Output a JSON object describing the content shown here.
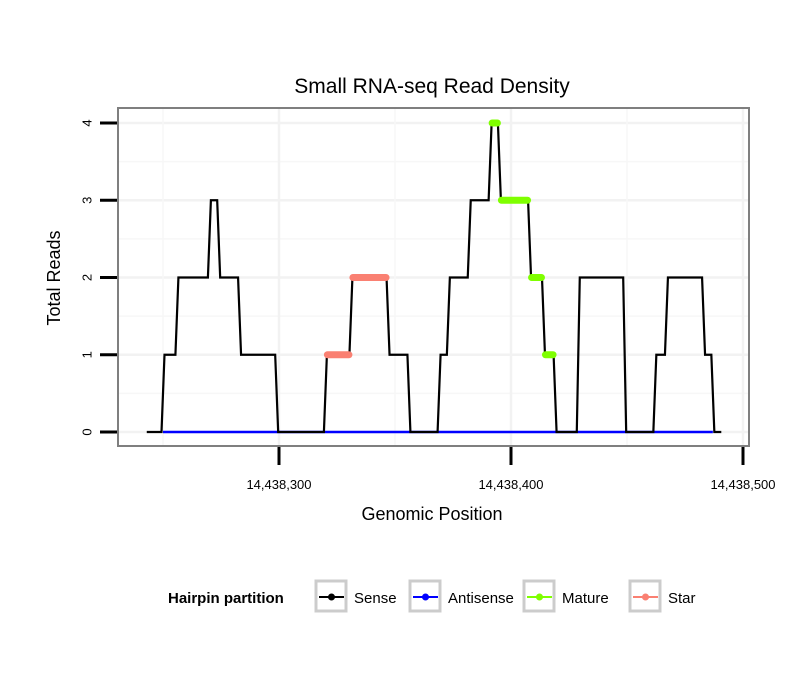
{
  "chart_data": {
    "type": "line",
    "title": "Small RNA-seq Read Density",
    "xlabel": "Genomic Position",
    "ylabel": "Total Reads",
    "xlim": [
      14438243,
      14438490
    ],
    "ylim": [
      0,
      4
    ],
    "x_ticks": [
      14438300,
      14438400,
      14438500
    ],
    "x_tick_labels": [
      "14,438,300",
      "14,438,400",
      "14,438,500"
    ],
    "y_ticks": [
      0,
      1,
      2,
      3,
      4
    ],
    "y_tick_labels": [
      "0",
      "1",
      "2",
      "3",
      "4"
    ],
    "grid": true,
    "legend": {
      "title": "Hairpin partition",
      "position": "bottom",
      "entries": [
        {
          "name": "Sense",
          "color": "#000000"
        },
        {
          "name": "Antisense",
          "color": "#0000ff"
        },
        {
          "name": "Mature",
          "color": "#7fff00"
        },
        {
          "name": "Star",
          "color": "#fa8072"
        }
      ]
    },
    "series": [
      {
        "name": "Sense",
        "color": "#000000",
        "steps": [
          [
            14438243,
            0
          ],
          [
            14438250,
            1
          ],
          [
            14438256,
            2
          ],
          [
            14438270,
            3
          ],
          [
            14438274,
            2
          ],
          [
            14438283,
            1
          ],
          [
            14438299,
            0
          ],
          [
            14438320,
            1
          ],
          [
            14438331,
            2
          ],
          [
            14438347,
            1
          ],
          [
            14438356,
            0
          ],
          [
            14438369,
            1
          ],
          [
            14438373,
            2
          ],
          [
            14438382,
            3
          ],
          [
            14438391,
            4
          ],
          [
            14438395,
            3
          ],
          [
            14438408,
            2
          ],
          [
            14438414,
            1
          ],
          [
            14438419,
            0
          ],
          [
            14438429,
            2
          ],
          [
            14438449,
            0
          ],
          [
            14438462,
            1
          ],
          [
            14438467,
            2
          ],
          [
            14438483,
            1
          ],
          [
            14438487,
            0
          ],
          [
            14438490,
            0
          ]
        ]
      },
      {
        "name": "Antisense",
        "color": "#0000ff",
        "segments": [
          [
            14438250,
            14438487,
            0
          ]
        ]
      },
      {
        "name": "Mature",
        "color": "#7fff00",
        "segments": [
          [
            14438391,
            14438395,
            4
          ],
          [
            14438395,
            14438408,
            3
          ],
          [
            14438408,
            14438414,
            2
          ],
          [
            14438414,
            14438419,
            1
          ]
        ]
      },
      {
        "name": "Star",
        "color": "#fa8072",
        "segments": [
          [
            14438320,
            14438331,
            1
          ],
          [
            14438331,
            14438347,
            2
          ]
        ]
      }
    ]
  }
}
